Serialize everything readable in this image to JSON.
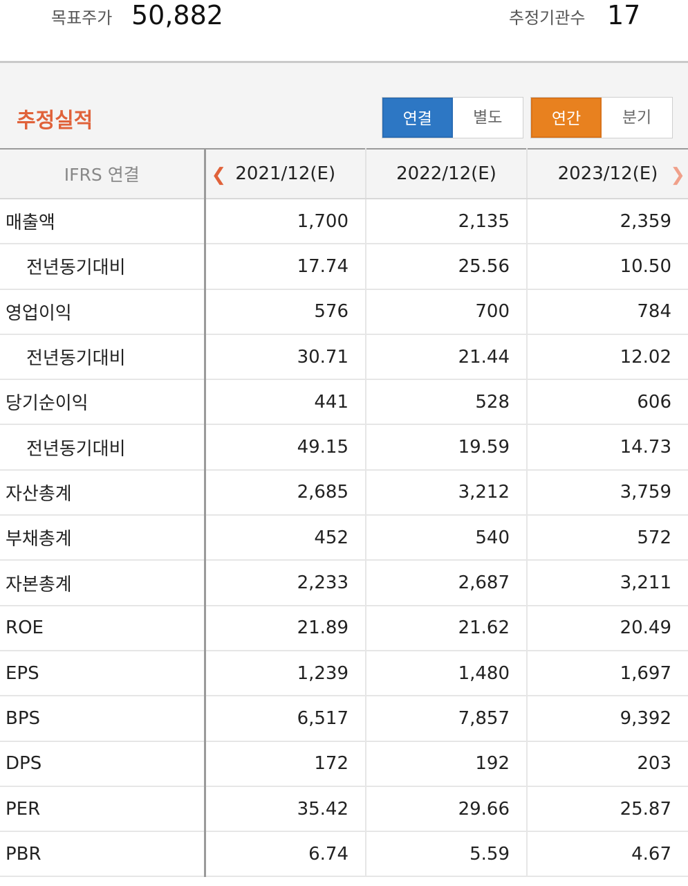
{
  "summary": {
    "target_price_label": "목표주가",
    "target_price_value": "50,882",
    "analyst_count_label": "추정기관수",
    "analyst_count_value": "17"
  },
  "section": {
    "title": "추정실적",
    "scope_options": [
      "연결",
      "별도"
    ],
    "scope_selected": "연결",
    "period_options": [
      "연간",
      "분기"
    ],
    "period_selected": "연간"
  },
  "table": {
    "corner_header": "IFRS 연결",
    "columns": [
      "2021/12(E)",
      "2022/12(E)",
      "2023/12(E)"
    ],
    "rows": [
      {
        "label": "매출액",
        "indent": false,
        "values": [
          "1,700",
          "2,135",
          "2,359"
        ]
      },
      {
        "label": "전년동기대비",
        "indent": true,
        "values": [
          "17.74",
          "25.56",
          "10.50"
        ]
      },
      {
        "label": "영업이익",
        "indent": false,
        "values": [
          "576",
          "700",
          "784"
        ]
      },
      {
        "label": "전년동기대비",
        "indent": true,
        "values": [
          "30.71",
          "21.44",
          "12.02"
        ]
      },
      {
        "label": "당기순이익",
        "indent": false,
        "values": [
          "441",
          "528",
          "606"
        ]
      },
      {
        "label": "전년동기대비",
        "indent": true,
        "values": [
          "49.15",
          "19.59",
          "14.73"
        ]
      },
      {
        "label": "자산총계",
        "indent": false,
        "values": [
          "2,685",
          "3,212",
          "3,759"
        ]
      },
      {
        "label": "부채총계",
        "indent": false,
        "values": [
          "452",
          "540",
          "572"
        ]
      },
      {
        "label": "자본총계",
        "indent": false,
        "values": [
          "2,233",
          "2,687",
          "3,211"
        ]
      },
      {
        "label": "ROE",
        "indent": false,
        "values": [
          "21.89",
          "21.62",
          "20.49"
        ]
      },
      {
        "label": "EPS",
        "indent": false,
        "values": [
          "1,239",
          "1,480",
          "1,697"
        ]
      },
      {
        "label": "BPS",
        "indent": false,
        "values": [
          "6,517",
          "7,857",
          "9,392"
        ]
      },
      {
        "label": "DPS",
        "indent": false,
        "values": [
          "172",
          "192",
          "203"
        ]
      },
      {
        "label": "PER",
        "indent": false,
        "values": [
          "35.42",
          "29.66",
          "25.87"
        ]
      },
      {
        "label": "PBR",
        "indent": false,
        "values": [
          "6.74",
          "5.59",
          "4.67"
        ]
      }
    ]
  },
  "colors": {
    "accent_title": "#e0623a",
    "scope_active": "#2d77c4",
    "period_active": "#e8811f"
  },
  "icons": {
    "prev": "chevron-left-icon",
    "next": "chevron-right-icon"
  }
}
